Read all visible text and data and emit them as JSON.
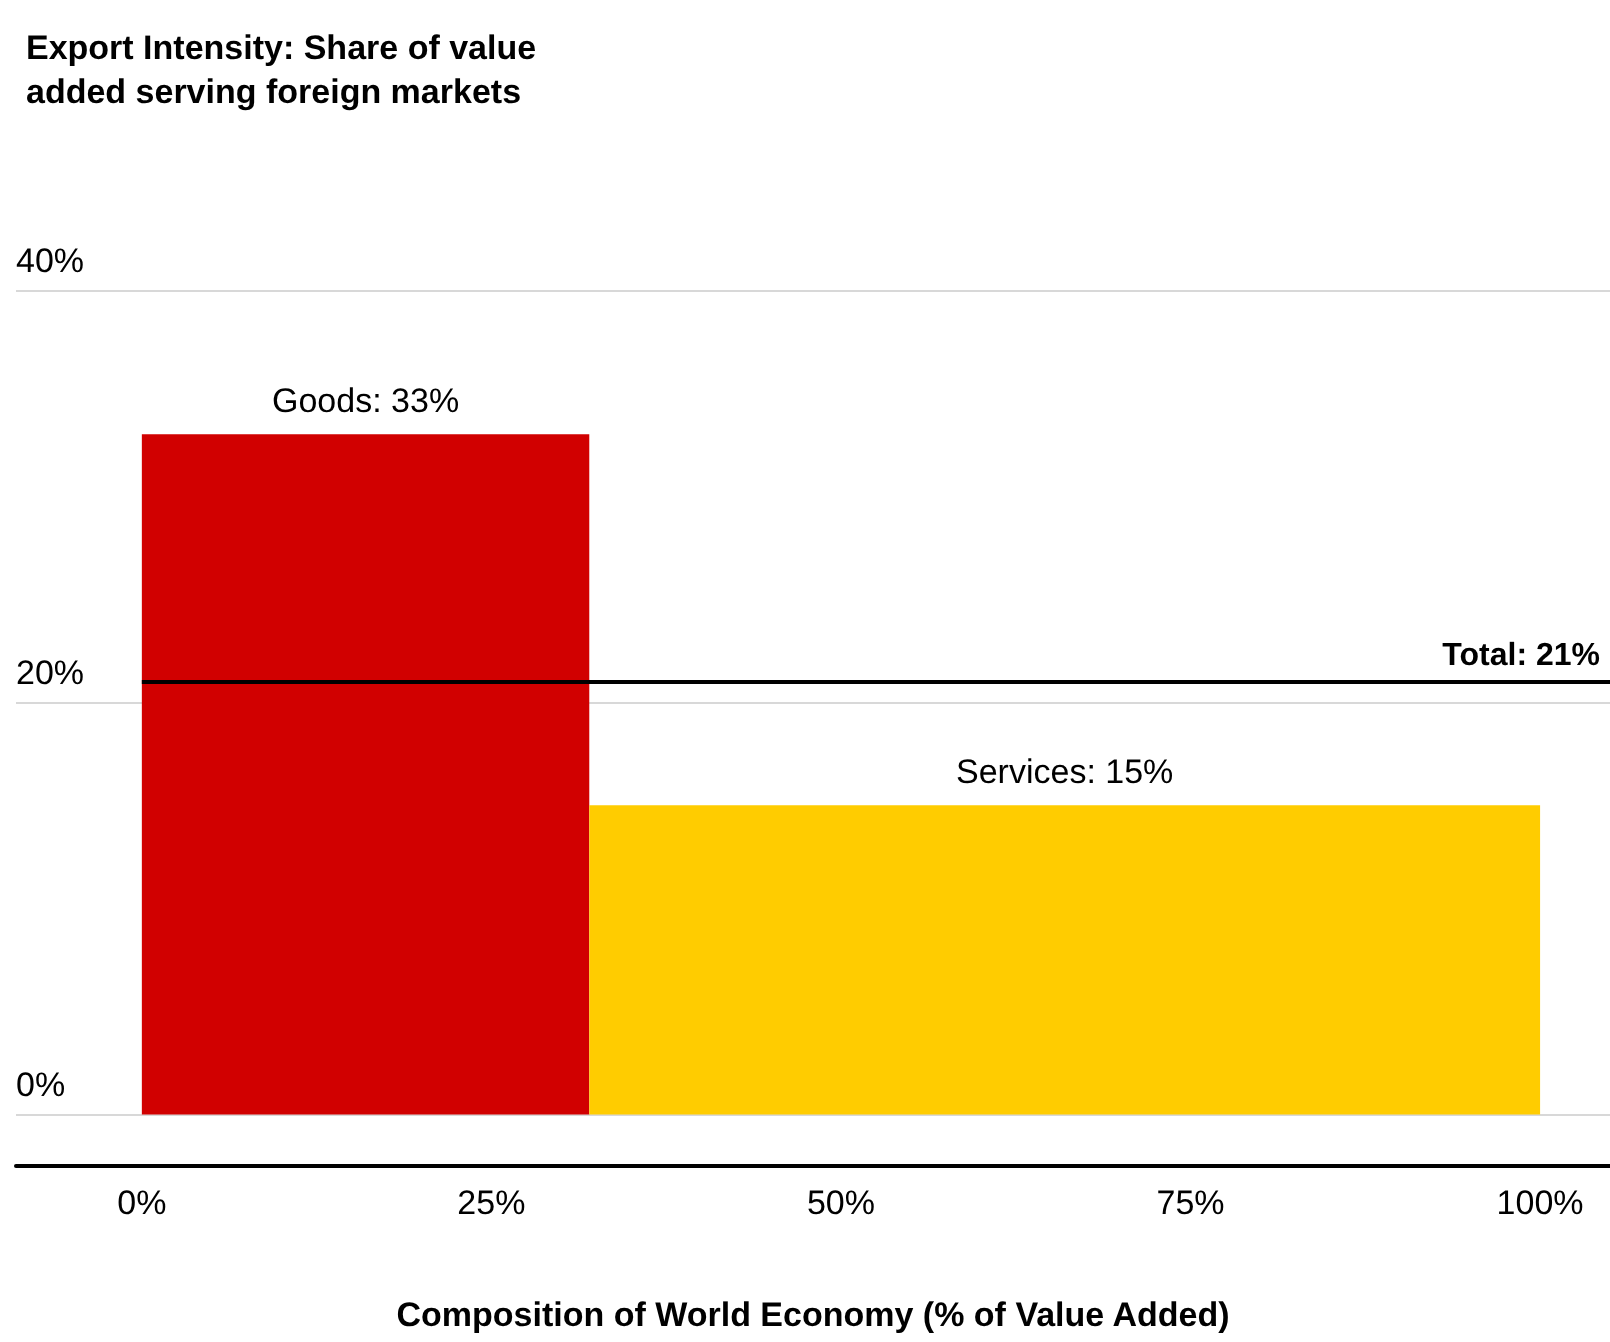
{
  "chart_data": {
    "type": "histogram",
    "title": "Export Intensity: Share of value added serving foreign markets",
    "xlabel": "Composition of World Economy (% of Value Added)",
    "bins": [
      0,
      32,
      100
    ],
    "values": [
      33,
      15
    ],
    "colors": [
      "#d10000",
      "#ffcc00"
    ],
    "value_labels": [
      "Goods: 33%",
      "Services: 15%"
    ],
    "xlim": [
      -9,
      105
    ],
    "xticks": [
      {
        "value": 0,
        "label": "0%"
      },
      {
        "value": 25,
        "label": "25%"
      },
      {
        "value": 50,
        "label": "50%"
      },
      {
        "value": 75,
        "label": "75%"
      },
      {
        "value": 100,
        "label": "100%"
      }
    ],
    "ylim": [
      -2.5,
      40
    ],
    "yticks": [
      {
        "value": 0,
        "label": "0%"
      },
      {
        "value": 20,
        "label": "20%"
      },
      {
        "value": 40,
        "label": "40%"
      }
    ],
    "ref_lines": [
      {
        "axis": "y",
        "value": 21,
        "label": "Total: 21%",
        "color": "#000000"
      }
    ],
    "grid": "y"
  }
}
